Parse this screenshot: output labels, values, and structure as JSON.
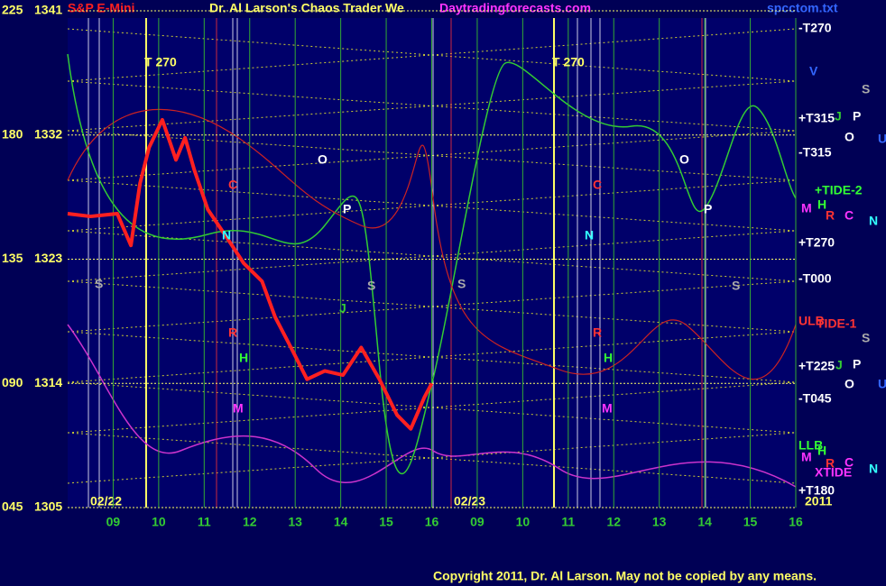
{
  "chart_data": {
    "type": "line",
    "title": "S&P E-Mini",
    "header": "Dr. Al Larson's Chaos Trader We",
    "site": "Daytradingforecasts.com",
    "file": "spcctom.txt",
    "copyright": "Copyright 2011, Dr. Al Larson. May not be copied by any means.",
    "dates": [
      "02/22",
      "02/23",
      "2011"
    ],
    "x": [
      0,
      0.5,
      1.09,
      1.39,
      1.59,
      1.79,
      2.08,
      2.38,
      2.58,
      2.78,
      3.08,
      3.47,
      3.87,
      4.27,
      4.56,
      4.86,
      5.26,
      5.65,
      6.05,
      6.45,
      6.85,
      7.24,
      7.54,
      7.84,
      8.0
    ],
    "values": [
      1326.3,
      1326.1,
      1326.3,
      1324.0,
      1328.5,
      1331.1,
      1333.1,
      1330.2,
      1331.8,
      1329.5,
      1326.6,
      1324.7,
      1322.7,
      1321.4,
      1318.8,
      1316.9,
      1314.3,
      1314.9,
      1314.6,
      1316.6,
      1314.3,
      1311.7,
      1310.7,
      1313.0,
      1314.0
    ],
    "color": "#ff2020",
    "xlim": [
      0,
      16
    ],
    "xticks": [
      {
        "value": 1,
        "label": "09"
      },
      {
        "value": 2,
        "label": "10"
      },
      {
        "value": 3,
        "label": "11"
      },
      {
        "value": 4,
        "label": "12"
      },
      {
        "value": 5,
        "label": "13"
      },
      {
        "value": 6,
        "label": "14"
      },
      {
        "value": 7,
        "label": "15"
      },
      {
        "value": 8,
        "label": "16"
      },
      {
        "value": 9,
        "label": "09"
      },
      {
        "value": 10,
        "label": "10"
      },
      {
        "value": 11,
        "label": "11"
      },
      {
        "value": 12,
        "label": "12"
      },
      {
        "value": 13,
        "label": "13"
      },
      {
        "value": 14,
        "label": "14"
      },
      {
        "value": 15,
        "label": "15"
      },
      {
        "value": 16,
        "label": "16"
      }
    ],
    "ylim": [
      1305,
      1341
    ],
    "yticks": [
      1305,
      1314,
      1323,
      1332,
      1341
    ],
    "y_angle_labels": [
      "045",
      "090",
      "135",
      "180",
      "225"
    ],
    "grid": true,
    "right_labels": [
      "-T270",
      "+T315",
      "-T315",
      "+TIDE-2",
      "+T270",
      "-T000",
      "ULB",
      "TIDE-1",
      "+T225",
      "-T045",
      "LLB",
      "XTIDE",
      "+T180"
    ],
    "markers": [
      "V",
      "S",
      "J",
      "P",
      "O",
      "U",
      "H",
      "M",
      "R",
      "C",
      "N",
      "S",
      "J",
      "P",
      "O",
      "U",
      "H",
      "M",
      "R",
      "C",
      "N"
    ],
    "plot_labels": [
      "T  270",
      "T  270",
      "O",
      "P",
      "C",
      "N",
      "S",
      "S",
      "J",
      "H",
      "M",
      "R",
      "O",
      "P",
      "C",
      "N",
      "S",
      "S",
      "H",
      "M",
      "R"
    ]
  }
}
